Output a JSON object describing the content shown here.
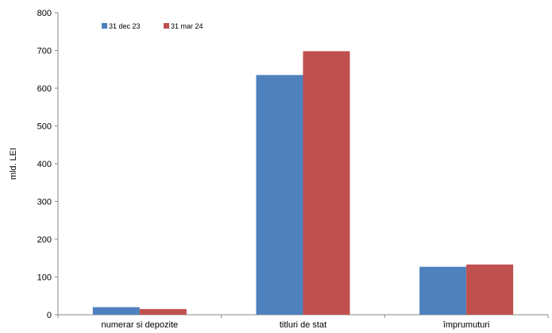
{
  "chart_data": {
    "type": "bar",
    "categories": [
      "numerar si depozite",
      "titluri de stat",
      "împrumuturi"
    ],
    "series": [
      {
        "name": "31 dec 23",
        "values": [
          20,
          635,
          127
        ],
        "color": "#4f81bd"
      },
      {
        "name": "31 mar 24",
        "values": [
          15,
          698,
          133
        ],
        "color": "#c0504d"
      }
    ],
    "ylabel": "mld. LEI",
    "xlabel": "",
    "ylim": [
      0,
      800
    ],
    "yticks": [
      0,
      100,
      200,
      300,
      400,
      500,
      600,
      700,
      800
    ],
    "grid": false,
    "legend_position": "top-left"
  }
}
